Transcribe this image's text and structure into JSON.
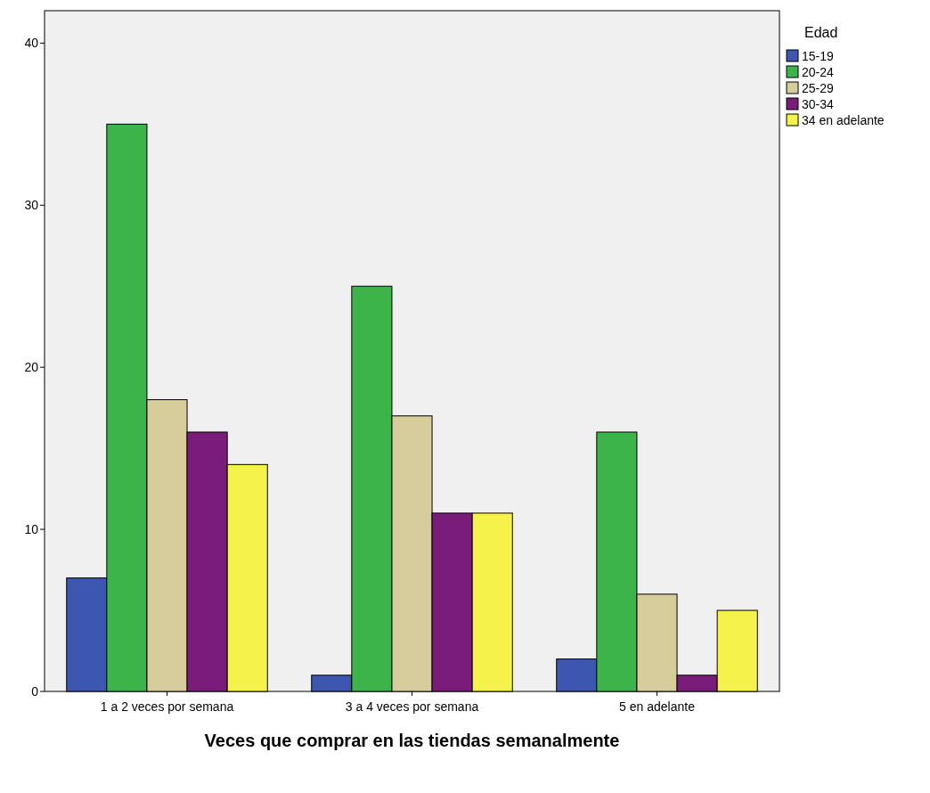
{
  "chart_data": {
    "type": "bar",
    "xlabel": "Veces que comprar en las tiendas semanalmente",
    "legend_title": "Edad",
    "categories": [
      "1 a 2 veces por semana",
      "3 a 4 veces por semana",
      "5 en adelante"
    ],
    "series": [
      {
        "name": "15-19",
        "color": "#3d56b0",
        "values": [
          7,
          1,
          2
        ]
      },
      {
        "name": "20-24",
        "color": "#3db44a",
        "values": [
          35,
          25,
          16
        ]
      },
      {
        "name": "25-29",
        "color": "#d6cc9c",
        "values": [
          18,
          17,
          6
        ]
      },
      {
        "name": "30-34",
        "color": "#7a1c7a",
        "values": [
          16,
          11,
          1
        ]
      },
      {
        "name": "34 en adelante",
        "color": "#f5f24c",
        "values": [
          14,
          11,
          5
        ]
      }
    ],
    "ylim": [
      0,
      42
    ],
    "yticks": [
      0,
      10,
      20,
      30,
      40
    ],
    "legend": "top right"
  }
}
